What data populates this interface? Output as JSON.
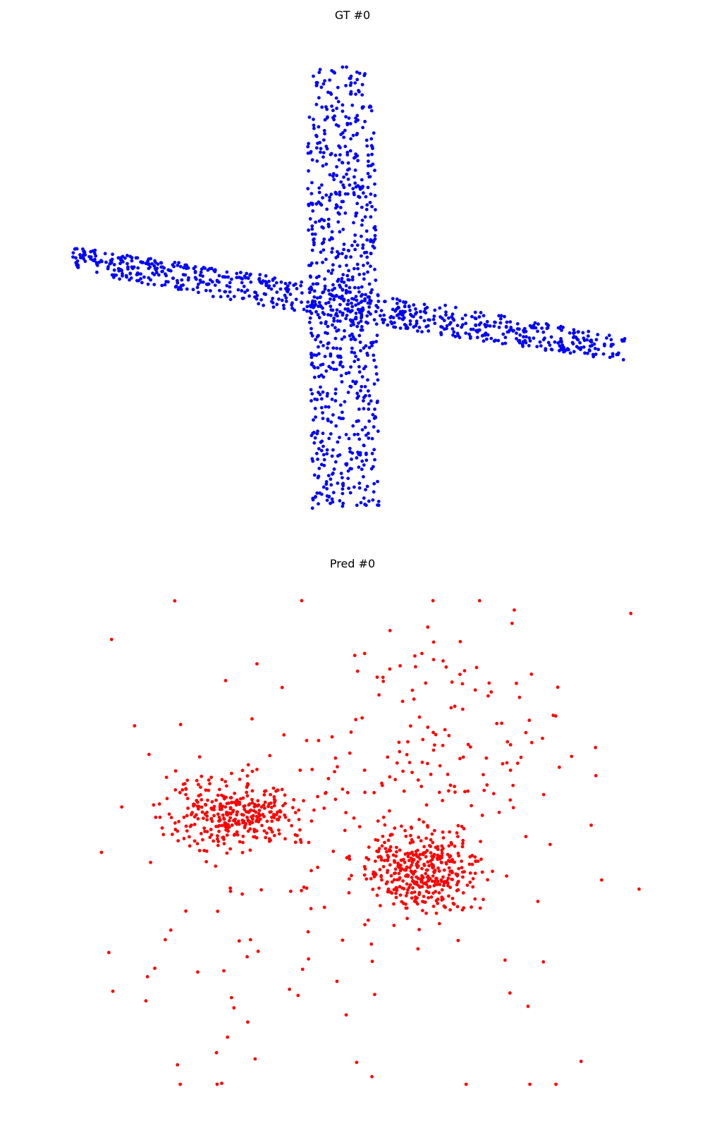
{
  "chart_data": [
    {
      "type": "scatter",
      "title": "GT #0",
      "color": "#0000ff",
      "axes_visible": false,
      "shape": "cross",
      "xlim": [
        -1,
        1
      ],
      "ylim": [
        -1,
        1
      ],
      "series": [
        {
          "name": "",
          "x": [],
          "y": []
        }
      ]
    },
    {
      "type": "scatter",
      "title": "Pred #0",
      "color": "#ff0000",
      "axes_visible": false,
      "shape": "two dense clusters with diffuse spread",
      "xlim": [
        -1,
        1
      ],
      "ylim": [
        -1,
        1
      ],
      "series": [
        {
          "name": "",
          "x": [],
          "y": []
        }
      ]
    }
  ]
}
